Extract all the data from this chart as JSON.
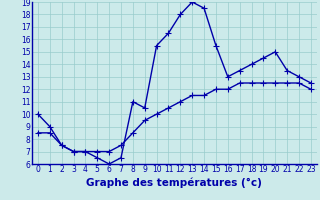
{
  "line1_x": [
    0,
    1,
    2,
    3,
    4,
    5,
    6,
    7,
    8,
    9,
    10,
    11,
    12,
    13,
    14,
    15,
    16,
    17,
    18,
    19,
    20,
    21,
    22,
    23
  ],
  "line1_y": [
    10,
    9,
    7.5,
    7,
    7,
    6.5,
    6,
    6.5,
    11,
    10.5,
    15.5,
    16.5,
    18,
    19,
    18.5,
    15.5,
    13,
    13.5,
    14,
    14.5,
    15,
    13.5,
    13,
    12.5
  ],
  "line2_x": [
    0,
    1,
    2,
    3,
    4,
    5,
    6,
    7,
    8,
    9,
    10,
    11,
    12,
    13,
    14,
    15,
    16,
    17,
    18,
    19,
    20,
    21,
    22,
    23
  ],
  "line2_y": [
    8.5,
    8.5,
    7.5,
    7,
    7,
    7,
    7,
    7.5,
    8.5,
    9.5,
    10,
    10.5,
    11,
    11.5,
    11.5,
    12,
    12,
    12.5,
    12.5,
    12.5,
    12.5,
    12.5,
    12.5,
    12
  ],
  "line_color": "#0000aa",
  "bg_color": "#cceaea",
  "grid_color": "#99cccc",
  "xlabel": "Graphe des températures (°c)",
  "xlim": [
    -0.5,
    23.5
  ],
  "ylim": [
    6,
    19
  ],
  "yticks": [
    6,
    7,
    8,
    9,
    10,
    11,
    12,
    13,
    14,
    15,
    16,
    17,
    18,
    19
  ],
  "xticks": [
    0,
    1,
    2,
    3,
    4,
    5,
    6,
    7,
    8,
    9,
    10,
    11,
    12,
    13,
    14,
    15,
    16,
    17,
    18,
    19,
    20,
    21,
    22,
    23
  ],
  "marker": "+",
  "markersize": 4,
  "linewidth": 1.0,
  "tick_fontsize": 5.5,
  "xlabel_fontsize": 7.5
}
